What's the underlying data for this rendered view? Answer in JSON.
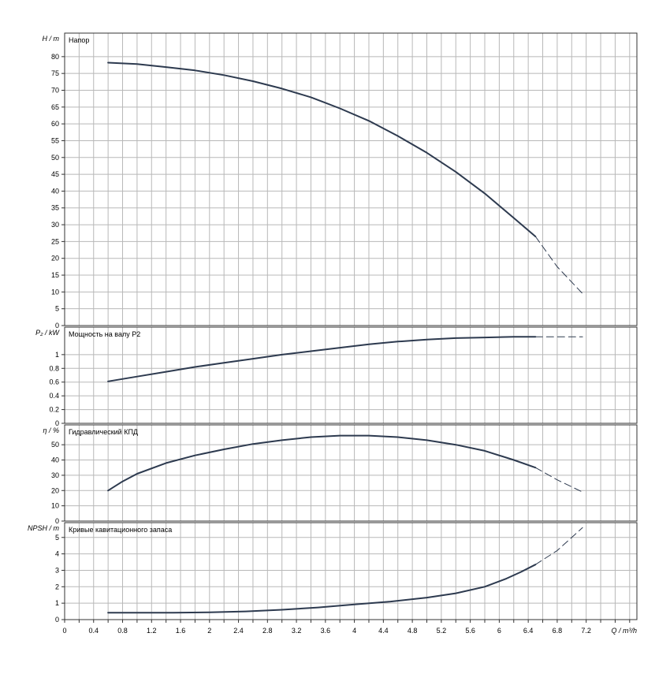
{
  "x_axis": {
    "label": "Q / m³/h",
    "ticks": [
      "0",
      "0.4",
      "0.8",
      "1.2",
      "1.6",
      "2",
      "2.4",
      "2.8",
      "3.2",
      "3.6",
      "4",
      "4.4",
      "4.8",
      "5.2",
      "5.6",
      "6",
      "6.4",
      "6.8",
      "7.2"
    ],
    "range": [
      0,
      7.9
    ]
  },
  "chart_data": [
    {
      "type": "line",
      "title": "Напор",
      "ylabel": "H / m",
      "ylim": [
        0,
        87
      ],
      "y_ticks": [
        0,
        5,
        10,
        15,
        20,
        25,
        30,
        35,
        40,
        45,
        50,
        55,
        60,
        65,
        70,
        75,
        80
      ],
      "x_ticks": [
        0,
        0.4,
        0.8,
        1.2,
        1.6,
        2,
        2.4,
        2.8,
        3.2,
        3.6,
        4,
        4.4,
        4.8,
        5.2,
        5.6,
        6,
        6.4,
        6.8,
        7.2
      ],
      "grid": true,
      "series": [
        {
          "style": "solid",
          "x": [
            0.6,
            1.0,
            1.4,
            1.8,
            2.2,
            2.6,
            3.0,
            3.4,
            3.8,
            4.2,
            4.6,
            5.0,
            5.4,
            5.8,
            6.2,
            6.5
          ],
          "y": [
            78.2,
            77.8,
            76.9,
            75.9,
            74.5,
            72.7,
            70.5,
            67.9,
            64.6,
            60.9,
            56.4,
            51.4,
            45.7,
            39.3,
            32.0,
            26.5
          ]
        },
        {
          "style": "dashed",
          "x": [
            6.5,
            6.8,
            7.15
          ],
          "y": [
            26.5,
            17.5,
            9.5
          ]
        }
      ]
    },
    {
      "type": "line",
      "title": "Мощность на валу P2",
      "ylabel": "P₂ / kW",
      "ylim": [
        0,
        1.4
      ],
      "y_ticks": [
        0,
        0.2,
        0.4,
        0.6,
        0.8,
        1
      ],
      "x_ticks": [
        0,
        0.4,
        0.8,
        1.2,
        1.6,
        2,
        2.4,
        2.8,
        3.2,
        3.6,
        4,
        4.4,
        4.8,
        5.2,
        5.6,
        6,
        6.4,
        6.8,
        7.2
      ],
      "grid": true,
      "series": [
        {
          "style": "solid",
          "x": [
            0.6,
            1.0,
            1.4,
            1.8,
            2.2,
            2.6,
            3.0,
            3.4,
            3.8,
            4.2,
            4.6,
            5.0,
            5.4,
            5.8,
            6.2,
            6.5
          ],
          "y": [
            0.61,
            0.68,
            0.75,
            0.82,
            0.88,
            0.94,
            1.0,
            1.05,
            1.1,
            1.15,
            1.19,
            1.22,
            1.24,
            1.25,
            1.26,
            1.26
          ]
        },
        {
          "style": "dashed",
          "x": [
            6.5,
            6.8,
            7.15
          ],
          "y": [
            1.26,
            1.26,
            1.26
          ]
        }
      ]
    },
    {
      "type": "line",
      "title": "Гидравлический КПД",
      "ylabel": "η / %",
      "ylim": [
        0,
        63
      ],
      "y_ticks": [
        0,
        10,
        20,
        30,
        40,
        50
      ],
      "x_ticks": [
        0,
        0.4,
        0.8,
        1.2,
        1.6,
        2,
        2.4,
        2.8,
        3.2,
        3.6,
        4,
        4.4,
        4.8,
        5.2,
        5.6,
        6,
        6.4,
        6.8,
        7.2
      ],
      "grid": true,
      "series": [
        {
          "style": "solid",
          "x": [
            0.6,
            0.8,
            1.0,
            1.4,
            1.8,
            2.2,
            2.6,
            3.0,
            3.4,
            3.8,
            4.2,
            4.6,
            5.0,
            5.4,
            5.8,
            6.2,
            6.5
          ],
          "y": [
            20,
            26,
            31,
            38,
            43,
            47,
            50.5,
            53,
            55,
            56,
            56,
            55,
            53,
            50,
            46,
            40,
            35
          ]
        },
        {
          "style": "dashed",
          "x": [
            6.5,
            6.8,
            7.15
          ],
          "y": [
            35,
            27,
            19
          ]
        }
      ]
    },
    {
      "type": "line",
      "title": "Кривые кавитационного запаса",
      "ylabel": "NPSH / m",
      "ylim": [
        0,
        5.9
      ],
      "y_ticks": [
        0,
        1,
        2,
        3,
        4,
        5
      ],
      "x_ticks": [
        0,
        0.4,
        0.8,
        1.2,
        1.6,
        2,
        2.4,
        2.8,
        3.2,
        3.6,
        4,
        4.4,
        4.8,
        5.2,
        5.6,
        6,
        6.4,
        6.8,
        7.2
      ],
      "grid": true,
      "series": [
        {
          "style": "solid",
          "x": [
            0.6,
            1.0,
            1.5,
            2.0,
            2.5,
            3.0,
            3.5,
            4.0,
            4.5,
            5.0,
            5.4,
            5.8,
            6.1,
            6.3,
            6.5
          ],
          "y": [
            0.42,
            0.42,
            0.42,
            0.44,
            0.5,
            0.6,
            0.74,
            0.92,
            1.1,
            1.34,
            1.6,
            2.0,
            2.5,
            2.9,
            3.35
          ]
        },
        {
          "style": "dashed",
          "x": [
            6.5,
            6.8,
            7.15
          ],
          "y": [
            3.35,
            4.2,
            5.6
          ]
        }
      ]
    }
  ]
}
